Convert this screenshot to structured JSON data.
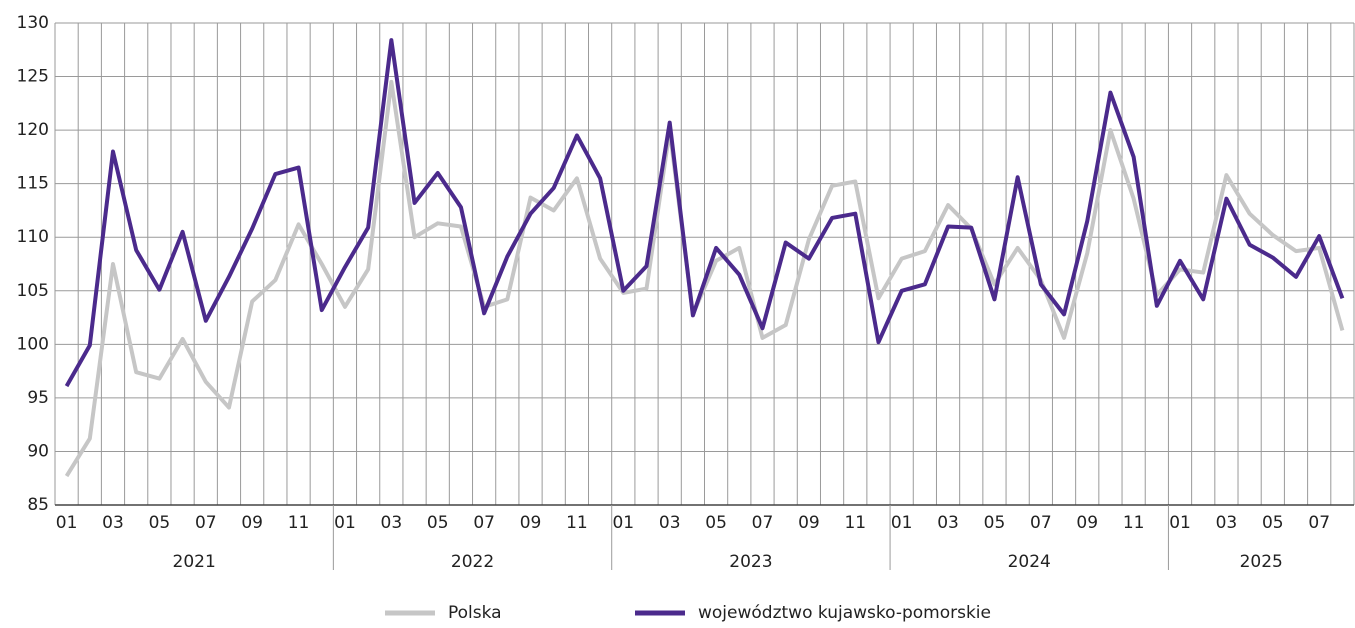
{
  "chart_data": {
    "type": "line",
    "categories": [
      "01",
      null,
      "03",
      null,
      "05",
      null,
      "07",
      null,
      "09",
      null,
      "11",
      null,
      "01",
      null,
      "03",
      null,
      "05",
      null,
      "07",
      null,
      "09",
      null,
      "11",
      null,
      "01",
      null,
      "03",
      null,
      "05",
      null,
      "07",
      null,
      "09",
      null,
      "11",
      null,
      "01",
      null,
      "03",
      null,
      "05",
      null,
      "07",
      null,
      "09",
      null,
      "11",
      null,
      "01",
      null,
      "03",
      null,
      "05",
      null,
      "07",
      null
    ],
    "groups": [
      "2021",
      "2022",
      "2023",
      "2024",
      "2025"
    ],
    "series": [
      {
        "name": "Polska",
        "color": "#c6c6c6",
        "values": [
          87.7,
          91.2,
          107.5,
          97.4,
          96.8,
          100.5,
          96.5,
          94.1,
          104,
          106,
          111.2,
          107.5,
          103.5,
          107,
          124.5,
          110,
          111.3,
          111,
          103.5,
          104.2,
          113.7,
          112.5,
          115.5,
          108,
          104.8,
          105.2,
          120,
          102.8,
          107.8,
          109,
          100.6,
          101.8,
          109.8,
          114.8,
          115.2,
          104.3,
          108,
          108.7,
          113,
          110.8,
          105.6,
          109,
          106,
          100.6,
          108.5,
          120,
          113.6,
          104.6,
          107,
          106.7,
          115.8,
          112.2,
          110.2,
          108.7,
          109,
          101.3
        ]
      },
      {
        "name": "województwo kujawsko-pomorskie",
        "color": "#4b2a8c",
        "values": [
          96.1,
          99.9,
          118,
          108.8,
          105.1,
          110.5,
          102.2,
          106.3,
          110.8,
          115.9,
          116.5,
          103.2,
          107.2,
          110.9,
          128.4,
          113.2,
          116,
          112.8,
          102.9,
          108.2,
          112.2,
          114.6,
          119.5,
          115.5,
          105,
          107.3,
          120.7,
          102.7,
          109,
          106.5,
          101.5,
          109.5,
          108,
          111.8,
          112.2,
          100.2,
          105,
          105.6,
          111,
          110.9,
          104.2,
          115.6,
          105.6,
          102.8,
          111.5,
          123.5,
          117.5,
          103.6,
          107.8,
          104.2,
          113.6,
          109.3,
          108.1,
          106.3,
          110.1,
          104.3
        ]
      }
    ],
    "ylim": [
      85,
      130
    ],
    "yticks": [
      85,
      90,
      95,
      100,
      105,
      110,
      115,
      120,
      125,
      130
    ],
    "grid": true,
    "legend": "bottom"
  }
}
